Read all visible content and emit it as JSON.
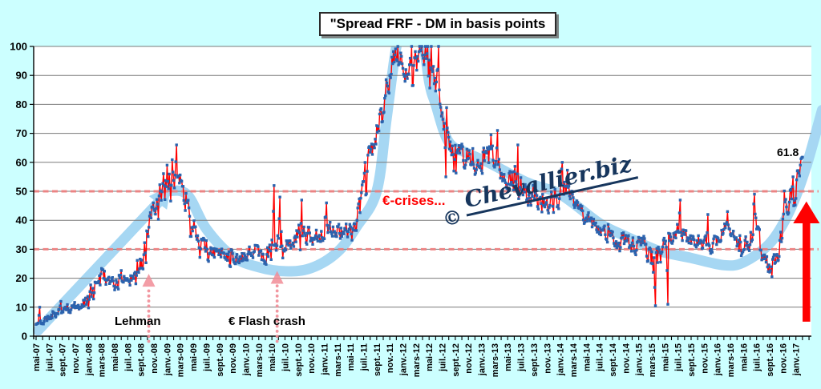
{
  "title": {
    "text": "\"Spread FRF - DM in basis points"
  },
  "watermark": {
    "symbol": "©",
    "name": "Chevallier.biz"
  },
  "annotations": {
    "lehman": {
      "label": "Lehman"
    },
    "flash_crash": {
      "label": "€ Flash crash"
    },
    "euro_crises": {
      "label": "€-crises..."
    },
    "last_value": {
      "label": "61.8"
    }
  },
  "colors": {
    "background": "#CCFFFF",
    "plot_background": "#FFFFFF",
    "gridline": "#7A7A7A",
    "axis": "#000000",
    "series_line": "#FF0000",
    "marker": "#2B63AE",
    "trend_band": "#A6D7F3",
    "reference_dash": "#F07F7F",
    "annotation_arrow": "#F18C96",
    "surge_arrow": "#FE0101",
    "watermark": "#17365D",
    "label_text": "#000000"
  },
  "chart_data": {
    "type": "line",
    "title": "\"Spread FRF - DM in basis points",
    "unit": "basis points",
    "ylim": [
      0,
      100
    ],
    "yticks": [
      0,
      10,
      20,
      30,
      40,
      50,
      60,
      70,
      80,
      90,
      100
    ],
    "reference_levels": [
      50,
      30
    ],
    "grid": "horizontal",
    "x_tick_labels": [
      "mai-07",
      "juil.-07",
      "sept.-07",
      "nov.-07",
      "janv.-08",
      "mars-08",
      "mai-08",
      "juil.-08",
      "sept.-08",
      "nov.-08",
      "janv.-09",
      "mars-09",
      "mai-09",
      "juil.-09",
      "sept.-09",
      "nov.-09",
      "janv.-10",
      "mars-10",
      "mai-10",
      "juil.-10",
      "sept.-10",
      "nov.-10",
      "janv.-11",
      "mars-11",
      "mai-11",
      "juil.-11",
      "sept.-11",
      "nov.-11",
      "janv.-12",
      "mars-12",
      "mai-12",
      "juil.-12",
      "sept.-12",
      "nov.-12",
      "janv.-13",
      "mars-13",
      "mai-13",
      "juil.-13",
      "sept.-13",
      "nov.-13",
      "janv.-14",
      "mars-14",
      "mai-14",
      "juil.-14",
      "sept.-14",
      "nov.-14",
      "janv.-15",
      "mars-15",
      "mai-15",
      "juil.-15",
      "sept.-15",
      "nov.-15",
      "janv.-16",
      "mars-16",
      "mai-16",
      "juil.-16",
      "sept.-16",
      "nov.-16",
      "janv.-17"
    ],
    "months_per_tick": 2,
    "series": [
      {
        "name": "Spread FRF - DM",
        "sampling": "monthly estimates in basis points, mai-2007 to févr-2017 (values read off chart)",
        "values": [
          4,
          5,
          6.5,
          8,
          8.5,
          9,
          10,
          11,
          13,
          19,
          22,
          19,
          17.5,
          19,
          20,
          20,
          24,
          33,
          45,
          50,
          55,
          57,
          52,
          44,
          38,
          33,
          30,
          28,
          30,
          29,
          27,
          26,
          28,
          30,
          29,
          27,
          31,
          32,
          30,
          31,
          35,
          36,
          34,
          35,
          37,
          36,
          37,
          36,
          37,
          40,
          50,
          62,
          70,
          78,
          92,
          95,
          96,
          90,
          92,
          96,
          95,
          88,
          80,
          70,
          66,
          62,
          62,
          58,
          60,
          62,
          63,
          56,
          53,
          55,
          52,
          48,
          49,
          45,
          44,
          46,
          50,
          52,
          45,
          43,
          41,
          39,
          37,
          36,
          33,
          32,
          33,
          31,
          33,
          30,
          28,
          27,
          32,
          34,
          38,
          35,
          33,
          34,
          33,
          30,
          33,
          35,
          36,
          33,
          32,
          34,
          38,
          27,
          23,
          27,
          38,
          45,
          52,
          61.8
        ],
        "volatility": [
          1.2,
          1.3,
          1.4,
          1.5,
          1.5,
          1.6,
          1.8,
          2,
          2.8,
          3.5,
          3,
          2.8,
          2.5,
          2.5,
          2.5,
          2.6,
          4.5,
          5,
          5,
          5,
          5,
          5.5,
          5,
          4.5,
          4,
          3.2,
          3,
          3,
          3,
          3,
          3,
          2.6,
          3,
          3,
          3,
          3,
          6.5,
          4,
          3,
          3,
          4,
          4,
          3.2,
          3.2,
          4,
          3.2,
          3.2,
          3,
          3.2,
          4,
          7,
          7,
          6,
          8,
          7,
          6,
          5,
          6,
          6,
          5,
          6,
          7,
          8,
          5.5,
          6,
          5,
          4.5,
          4,
          4,
          4.5,
          5,
          4.5,
          4,
          5,
          4.5,
          4,
          4,
          4,
          4,
          4.5,
          5.5,
          4.5,
          4,
          3.5,
          3,
          3,
          3,
          3.5,
          3,
          4,
          3,
          3,
          4,
          3.2,
          6,
          7,
          4,
          4,
          4.5,
          3.2,
          3,
          3,
          3,
          3,
          3.2,
          4,
          4,
          3.2,
          3,
          5,
          6,
          4.2,
          3,
          4,
          6,
          5.5,
          6,
          3
        ],
        "last_value": 61.8
      }
    ],
    "spike_points": [
      [
        0.5,
        10
      ],
      [
        3.8,
        12
      ],
      [
        21.4,
        66
      ],
      [
        36.3,
        52
      ],
      [
        37.2,
        48
      ],
      [
        40.5,
        47
      ],
      [
        44.3,
        46
      ],
      [
        58.5,
        100
      ],
      [
        59.4,
        100
      ],
      [
        60.3,
        100
      ],
      [
        61.4,
        100
      ],
      [
        62.5,
        55
      ],
      [
        63.8,
        57
      ],
      [
        70.4,
        71
      ],
      [
        73.5,
        66
      ],
      [
        80.3,
        60
      ],
      [
        94.6,
        10.5
      ],
      [
        96.4,
        11
      ],
      [
        98.3,
        47
      ],
      [
        102.5,
        42
      ],
      [
        105.5,
        43
      ],
      [
        109.7,
        49
      ],
      [
        112.3,
        20.5
      ],
      [
        115.5,
        55
      ],
      [
        117,
        61.8
      ]
    ],
    "trend_curve": {
      "points": [
        [
          19.8,
          50
        ],
        [
          23,
          49
        ],
        [
          26,
          37
        ],
        [
          30,
          27.5
        ],
        [
          34,
          23.8
        ],
        [
          38,
          22.4
        ],
        [
          42,
          23.5
        ],
        [
          46,
          29
        ],
        [
          49,
          38
        ],
        [
          52,
          50
        ],
        [
          53.5,
          75
        ],
        [
          55,
          100
        ],
        [
          56.5,
          112
        ],
        [
          58.5,
          110
        ],
        [
          60,
          88
        ],
        [
          61,
          80
        ],
        [
          63,
          67
        ],
        [
          66,
          63
        ],
        [
          69,
          60
        ],
        [
          75,
          53
        ],
        [
          80,
          49
        ],
        [
          86,
          39
        ],
        [
          90,
          34.5
        ],
        [
          95,
          29.5
        ],
        [
          100,
          27
        ],
        [
          105,
          24.5
        ],
        [
          108,
          25.5
        ],
        [
          112,
          32
        ],
        [
          115,
          43
        ],
        [
          117.5,
          58
        ],
        [
          120,
          78
        ]
      ]
    },
    "trend_arrow": {
      "from": [
        0.3,
        2
      ],
      "to": [
        18.6,
        46
      ],
      "head_at": [
        20.6,
        52
      ]
    },
    "annotation_arrows": {
      "lehman": {
        "x_month": 17.2,
        "dots_from_value": -1.8,
        "dots_to_value": 16.5,
        "apex_value": 21.5
      },
      "flash_crash": {
        "x_month": 36.8,
        "dots_from_value": -1.8,
        "dots_to_value": 17.5,
        "apex_value": 22.5
      }
    },
    "surge_arrow": {
      "x_month": 117.6,
      "from_value": 5,
      "shaft_top_value": 39.5,
      "apex_value": 46.5
    },
    "noise_seed": 11,
    "points_per_month": 9
  }
}
